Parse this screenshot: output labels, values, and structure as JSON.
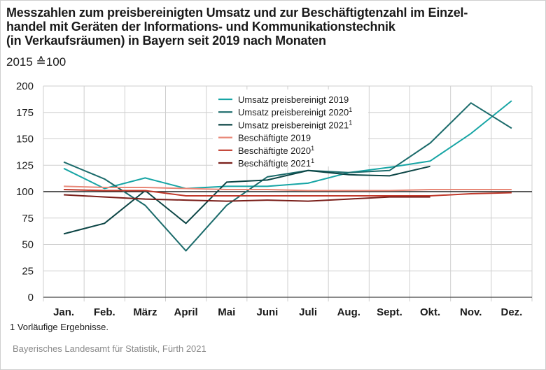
{
  "title_lines": [
    "Messzahlen zum preisbereinigten Umsatz und zur Beschäftigtenzahl im Einzel-",
    "handel mit Geräten der Informations- und Kommunikationstechnik",
    "(in Verkaufsräumen) in Bayern seit 2019 nach Monaten"
  ],
  "subtitle": "2015 ≙100",
  "footnote": "1  Vorläufige Ergebnisse.",
  "source": "Bayerisches Landesamt für Statistik, Fürth 2021",
  "chart_data": {
    "type": "line",
    "categories": [
      "Jan.",
      "Feb.",
      "März",
      "April",
      "Mai",
      "Juni",
      "Juli",
      "Aug.",
      "Sept.",
      "Okt.",
      "Nov.",
      "Dez."
    ],
    "ylim": [
      0,
      200
    ],
    "yticks": [
      0,
      25,
      50,
      75,
      100,
      125,
      150,
      175,
      200
    ],
    "grid": true,
    "reference_line": 100,
    "legend_position": "top-center",
    "series": [
      {
        "name": "Umsatz preisbereinigt 2019",
        "sup": "",
        "color": "#17a5a5",
        "width": 2,
        "values": [
          122,
          103,
          113,
          103,
          105,
          105,
          108,
          118,
          123,
          129,
          155,
          186
        ]
      },
      {
        "name": "Umsatz preisbereinigt 2020",
        "sup": "1",
        "color": "#1b6b6b",
        "width": 2,
        "values": [
          128,
          112,
          87,
          44,
          87,
          114,
          120,
          118,
          120,
          146,
          184,
          160
        ]
      },
      {
        "name": "Umsatz preisbereinigt 2021",
        "sup": "1",
        "color": "#0c4545",
        "width": 2,
        "values": [
          60,
          70,
          101,
          70,
          109,
          111,
          120,
          116,
          115,
          124,
          null,
          null
        ]
      },
      {
        "name": "Beschäftigte 2019",
        "sup": "",
        "color": "#e88878",
        "width": 2,
        "values": [
          105,
          104,
          104,
          103,
          102,
          102,
          101,
          101,
          101,
          102,
          102,
          102
        ]
      },
      {
        "name": "Beschäftigte 2020",
        "sup": "1",
        "color": "#c0392b",
        "width": 2,
        "values": [
          102,
          101,
          101,
          96,
          96,
          96,
          96,
          96,
          96,
          96,
          98,
          99
        ]
      },
      {
        "name": "Beschäftigte 2021",
        "sup": "1",
        "color": "#7a1f1a",
        "width": 2,
        "values": [
          97,
          95,
          93,
          92,
          91,
          92,
          91,
          93,
          95,
          95,
          null,
          null
        ]
      }
    ]
  }
}
